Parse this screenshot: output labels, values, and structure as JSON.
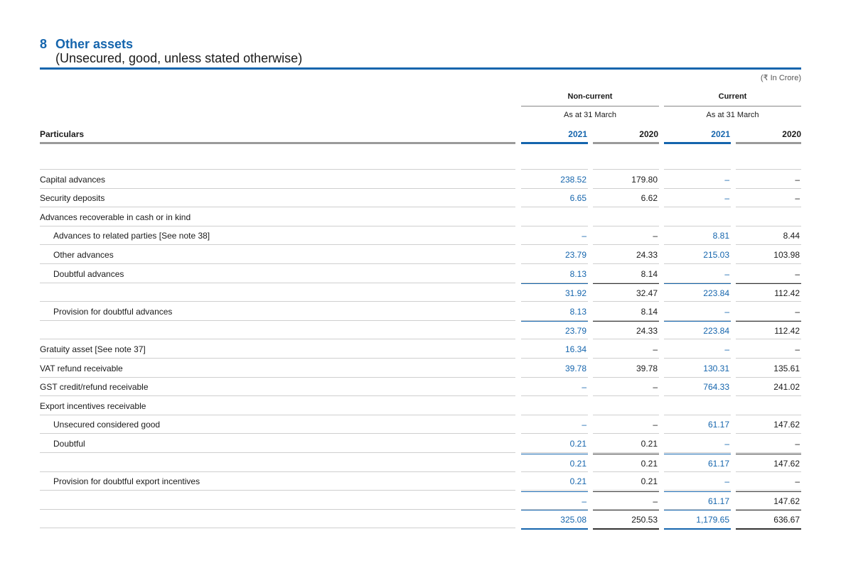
{
  "note": {
    "number": "8",
    "title": "Other assets",
    "subtitle": "(Unsecured, good, unless stated otherwise)",
    "unit": "(₹ In Crore)"
  },
  "header": {
    "particulars": "Particulars",
    "groups": [
      {
        "label": "Non-current",
        "sub": "As at 31 March",
        "years": [
          "2021",
          "2020"
        ]
      },
      {
        "label": "Current",
        "sub": "As at 31 March",
        "years": [
          "2021",
          "2020"
        ]
      }
    ]
  },
  "rows": [
    {
      "label": "",
      "values": [
        "",
        "",
        "",
        ""
      ]
    },
    {
      "label": "Capital advances",
      "values": [
        "238.52",
        "179.80",
        "–",
        "–"
      ]
    },
    {
      "label": "Security deposits",
      "values": [
        "6.65",
        "6.62",
        "–",
        "–"
      ]
    },
    {
      "label": "Advances recoverable in cash or in kind",
      "values": [
        "",
        "",
        "",
        ""
      ]
    },
    {
      "label": "Advances to related parties [See note 38]",
      "values": [
        "–",
        "–",
        "8.81",
        "8.44"
      ],
      "indent": true
    },
    {
      "label": "Other advances",
      "values": [
        "23.79",
        "24.33",
        "215.03",
        "103.98"
      ],
      "indent": true
    },
    {
      "label": "Doubtful advances",
      "values": [
        "8.13",
        "8.14",
        "–",
        "–"
      ],
      "indent": true
    },
    {
      "label": "",
      "values": [
        "31.92",
        "32.47",
        "223.84",
        "112.42"
      ],
      "sum": true
    },
    {
      "label": "Provision for doubtful advances",
      "values": [
        "8.13",
        "8.14",
        "–",
        "–"
      ],
      "indent": true
    },
    {
      "label": "",
      "values": [
        "23.79",
        "24.33",
        "223.84",
        "112.42"
      ],
      "sum": true
    },
    {
      "label": "Gratuity asset [See note 37]",
      "values": [
        "16.34",
        "–",
        "–",
        "–"
      ]
    },
    {
      "label": "VAT refund receivable",
      "values": [
        "39.78",
        "39.78",
        "130.31",
        "135.61"
      ]
    },
    {
      "label": "GST credit/refund receivable",
      "values": [
        "–",
        "–",
        "764.33",
        "241.02"
      ]
    },
    {
      "label": "Export incentives receivable",
      "values": [
        "",
        "",
        "",
        ""
      ]
    },
    {
      "label": "Unsecured considered good",
      "values": [
        "–",
        "–",
        "61.17",
        "147.62"
      ],
      "indent": true
    },
    {
      "label": "Doubtful",
      "values": [
        "0.21",
        "0.21",
        "–",
        "–"
      ],
      "indent": true
    },
    {
      "label": "",
      "values": [
        "0.21",
        "0.21",
        "61.17",
        "147.62"
      ],
      "sum": true
    },
    {
      "label": "Provision for doubtful export incentives",
      "values": [
        "0.21",
        "0.21",
        "–",
        "–"
      ],
      "indent": true
    },
    {
      "label": "",
      "values": [
        "–",
        "–",
        "61.17",
        "147.62"
      ],
      "sum": true
    },
    {
      "label": "",
      "values": [
        "325.08",
        "250.53",
        "1,179.65",
        "636.67"
      ],
      "total": true
    }
  ]
}
